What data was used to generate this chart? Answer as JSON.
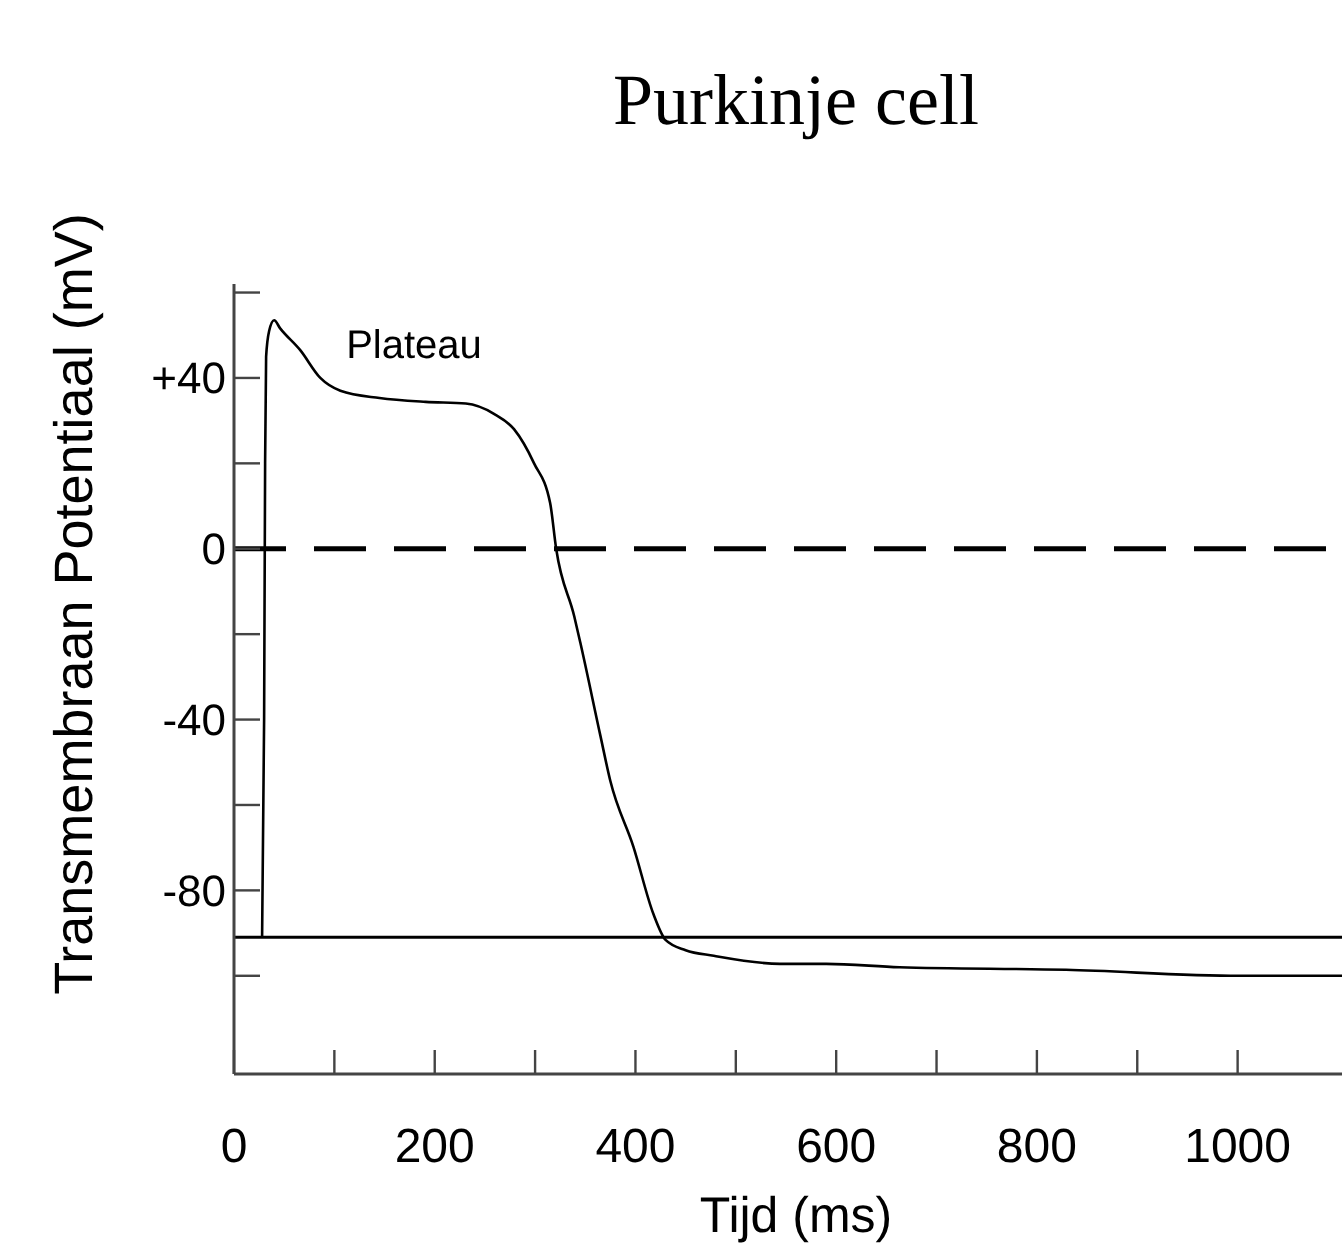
{
  "chart_data": {
    "type": "line",
    "title": "Purkinje cell",
    "xlabel": "Tijd (ms)",
    "ylabel": "Transmembraan Potentiaal (mV)",
    "x": [
      28,
      30,
      31,
      32,
      35,
      40,
      46,
      66,
      86,
      106,
      145,
      191,
      231,
      259,
      279,
      299,
      315,
      321,
      339,
      345,
      365,
      375,
      398,
      418,
      430,
      450,
      478,
      544,
      590,
      663,
      829,
      1002,
      1104
    ],
    "series": [
      {
        "color": "#000000",
        "values": [
          -91,
          -40,
          20,
          45,
          51,
          53.5,
          51.6,
          46.5,
          40,
          37,
          35.3,
          34.4,
          34,
          31.6,
          28,
          20,
          10.7,
          0,
          -15.8,
          -21.9,
          -43.7,
          -54.4,
          -69.8,
          -85.6,
          -91.6,
          -94,
          -95.3,
          -97.2,
          -97.2,
          -98,
          -98.6,
          -100,
          -100
        ]
      }
    ],
    "xlim": [
      0,
      1104
    ],
    "ylim": [
      -123,
      62
    ],
    "xticks": [
      0,
      {
        "value": 100,
        "label": null
      },
      200,
      {
        "value": 300,
        "label": null
      },
      400,
      {
        "value": 500,
        "label": null
      },
      600,
      {
        "value": 700,
        "label": null
      },
      800,
      {
        "value": 900,
        "label": null
      },
      1000
    ],
    "yticks": [
      {
        "value": 60,
        "label": null
      },
      {
        "value": 40,
        "label": "+40"
      },
      {
        "value": 20,
        "label": null
      },
      0,
      {
        "value": -20,
        "label": null
      },
      -40,
      {
        "value": -60,
        "label": null
      },
      -80,
      {
        "value": -100,
        "label": null
      }
    ],
    "ref_lines": [
      {
        "axis": "y",
        "value": 0,
        "line_style": "dashed",
        "color": "#000000"
      },
      {
        "axis": "y",
        "value": -91,
        "line_style": "solid",
        "color": "#000000"
      }
    ],
    "annotations": [
      "Plateau"
    ],
    "grid": false,
    "marker": "none",
    "line_style": "solid"
  }
}
